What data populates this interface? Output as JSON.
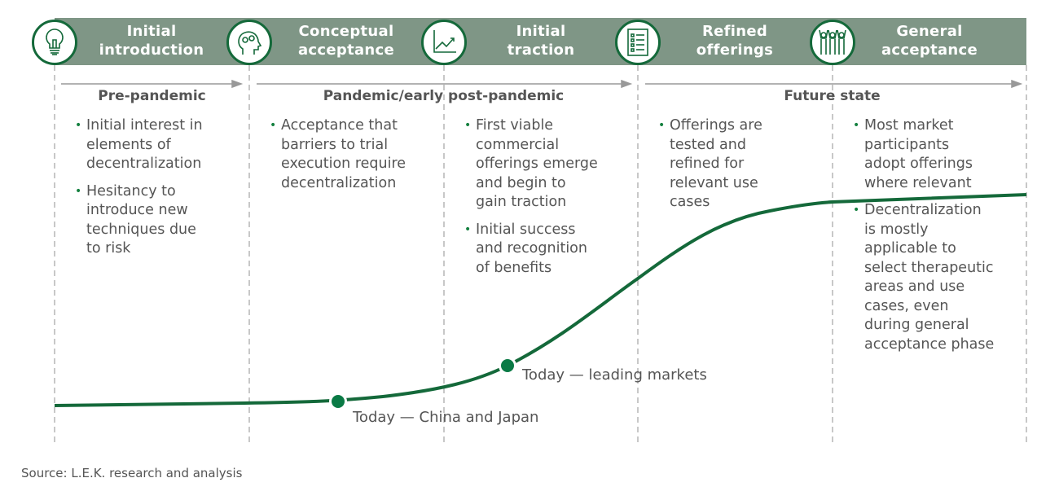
{
  "stages": [
    {
      "title": "Initial\nintroduction",
      "icon": "lightbulb-icon"
    },
    {
      "title": "Conceptual\nacceptance",
      "icon": "head-gears-icon"
    },
    {
      "title": "Initial\ntraction",
      "icon": "growth-chart-icon"
    },
    {
      "title": "Refined\nofferings",
      "icon": "checklist-icon"
    },
    {
      "title": "General\nacceptance",
      "icon": "people-cheering-icon"
    }
  ],
  "phases": [
    "Pre-pandemic",
    "Pandemic/early post-pandemic",
    "Future state"
  ],
  "columns": [
    {
      "bullets": [
        "Initial interest in\nelements of\ndecentralization",
        "Hesitancy to\nintroduce new\ntechniques due\nto risk"
      ]
    },
    {
      "bullets": [
        "Acceptance that\nbarriers to trial\nexecution require\ndecentralization"
      ]
    },
    {
      "bullets": [
        "First viable\ncommercial\nofferings emerge\nand begin to\ngain traction",
        "Initial success\nand recognition\nof benefits"
      ]
    },
    {
      "bullets": [
        "Offerings are\ntested and\nrefined for\nrelevant use\ncases"
      ]
    },
    {
      "bullets": [
        "Most market\nparticipants\nadopt offerings\nwhere relevant",
        "Decentralization\nis mostly\napplicable to\nselect therapeutic\nareas and use\ncases, even\nduring general\nacceptance phase"
      ]
    }
  ],
  "markers": [
    "Today — China and Japan",
    "Today — leading markets"
  ],
  "source": "Source: L.E.K. research and analysis",
  "colors": {
    "header": "#7f9686",
    "curve": "#14693a",
    "marker": "#0a7a45",
    "text": "#555555"
  }
}
